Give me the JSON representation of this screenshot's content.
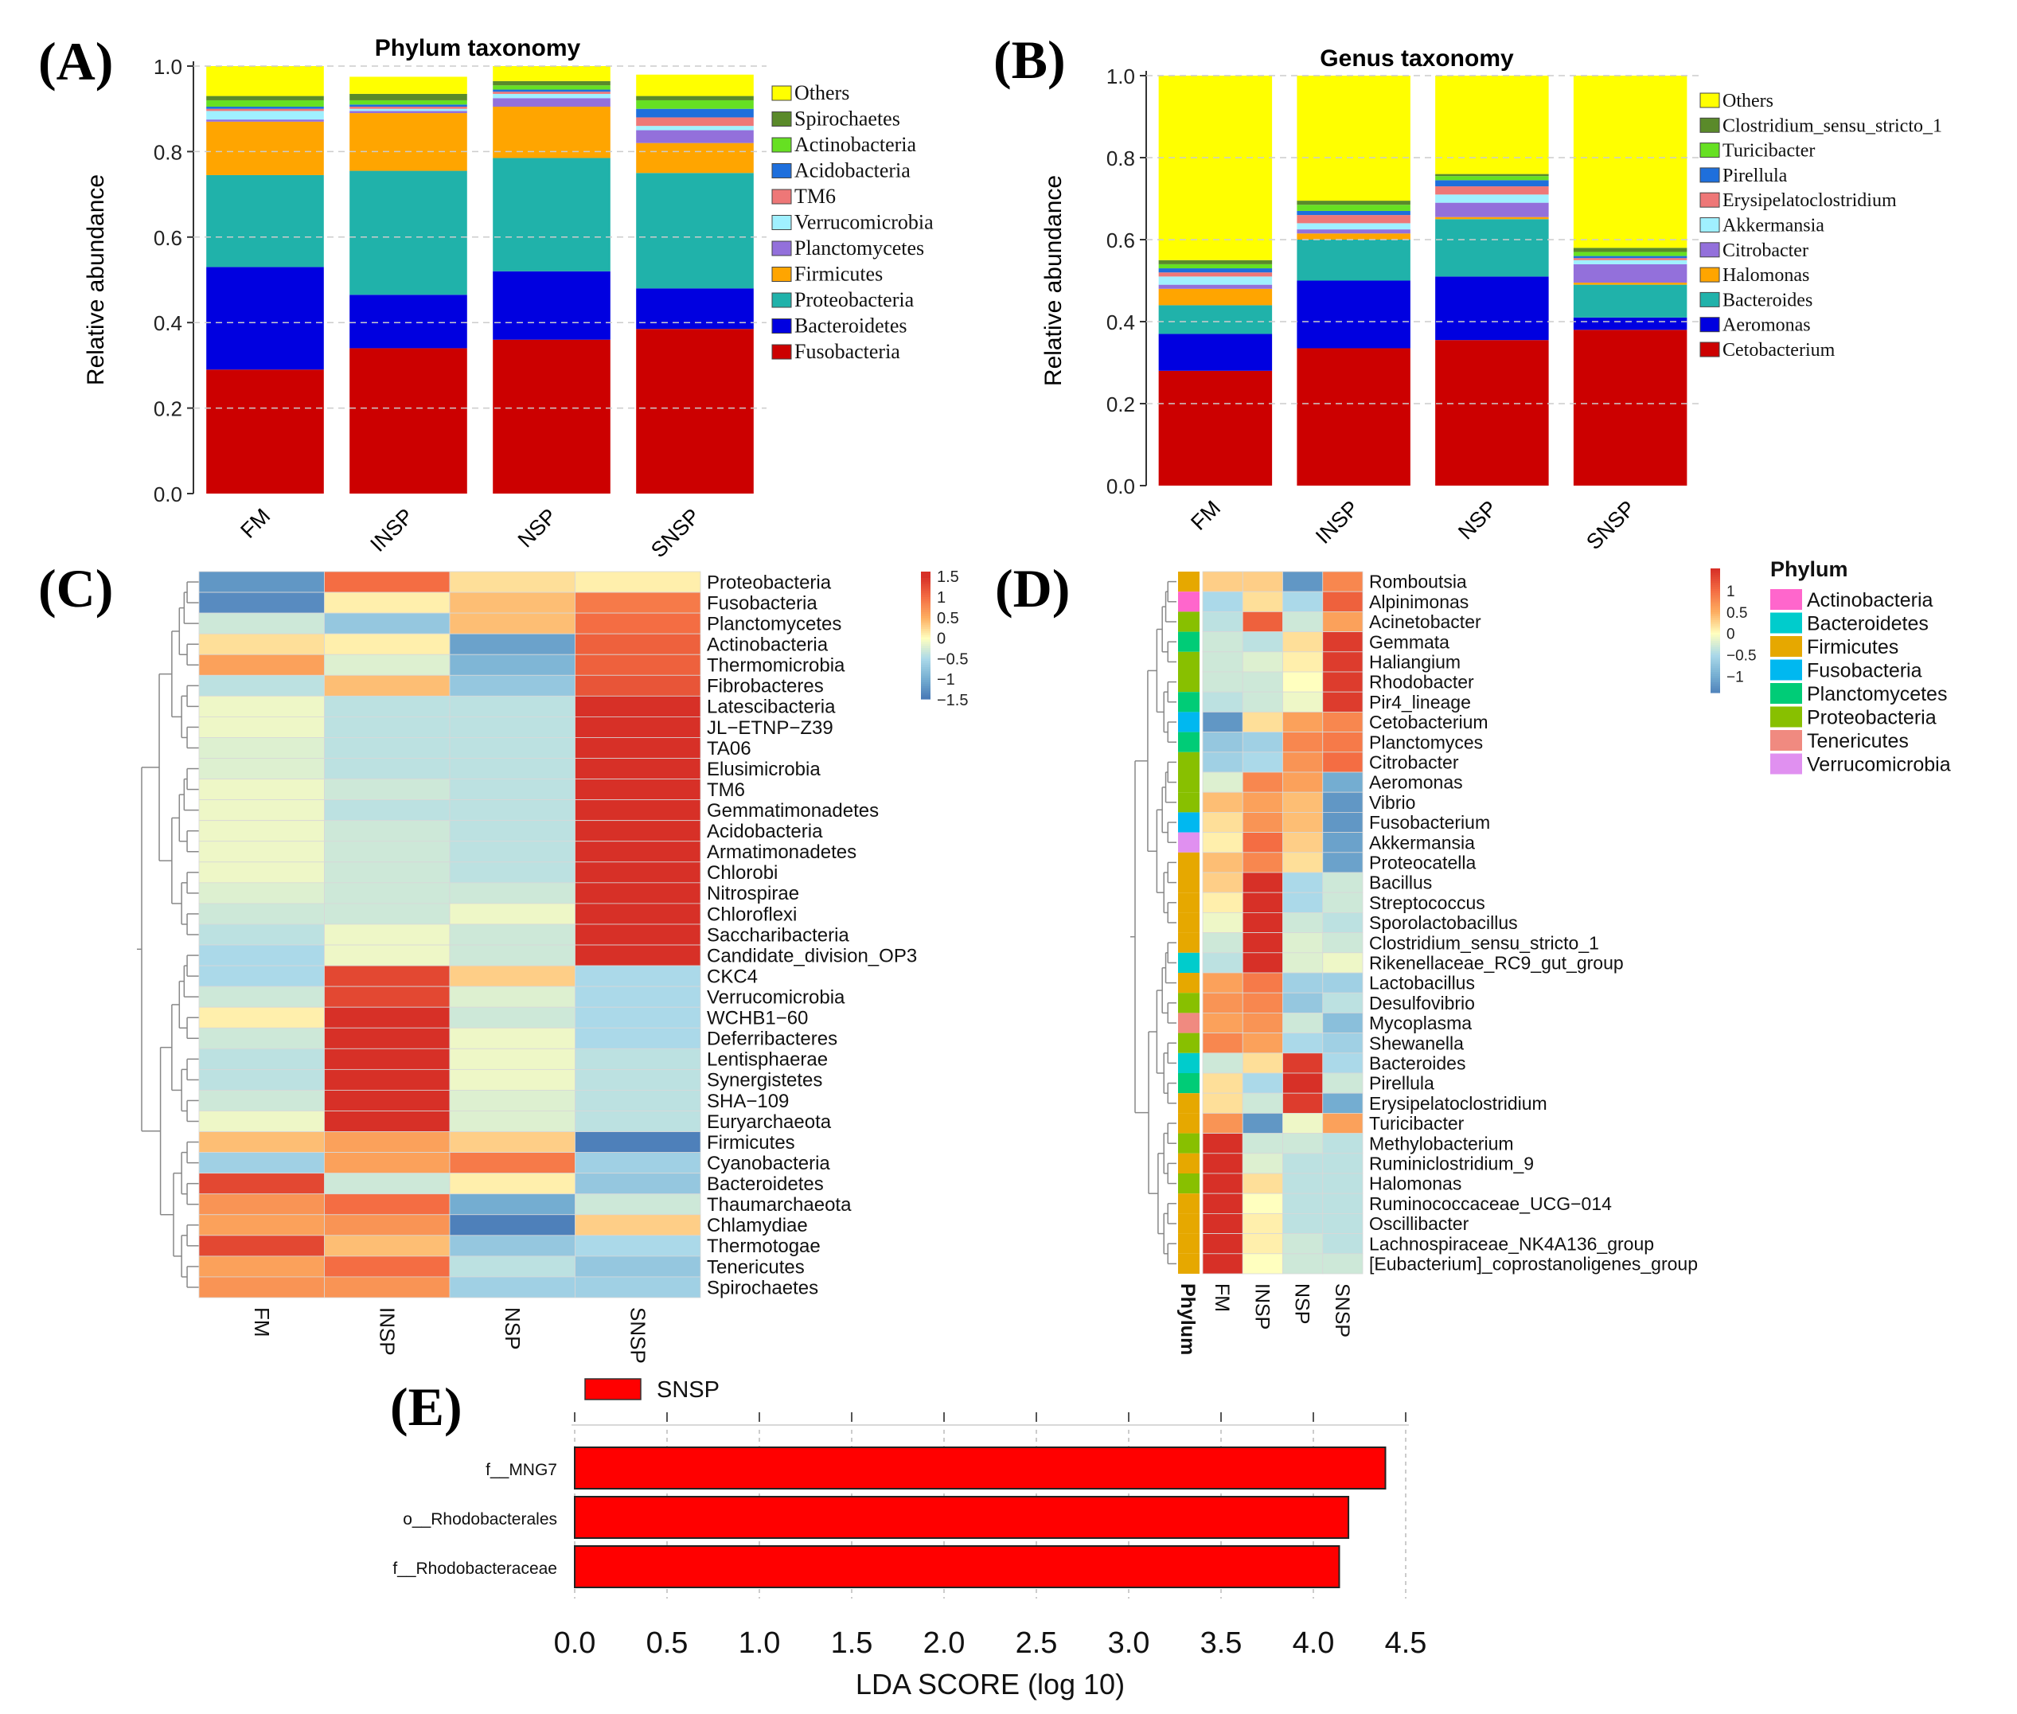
{
  "chart_data": [
    {
      "panel": "(A)",
      "type": "bar",
      "stacked": true,
      "title": "Phylum taxonomy",
      "ylabel": "Relative abundance",
      "xlabel": "",
      "ylim": [
        0,
        1
      ],
      "yticks": [
        "0.0",
        "0.2",
        "0.4",
        "0.6",
        "0.8",
        "1.0"
      ],
      "categories": [
        "FM",
        "INSP",
        "NSP",
        "SNSP"
      ],
      "series": [
        {
          "name": "Fusobacteria",
          "color": "#cc0000",
          "values": [
            0.29,
            0.34,
            0.36,
            0.385
          ]
        },
        {
          "name": "Bacteroidetes",
          "color": "#0000e0",
          "values": [
            0.24,
            0.125,
            0.16,
            0.095
          ]
        },
        {
          "name": "Proteobacteria",
          "color": "#20b2aa",
          "values": [
            0.215,
            0.29,
            0.265,
            0.27
          ]
        },
        {
          "name": "Firmicutes",
          "color": "#ffa500",
          "values": [
            0.125,
            0.135,
            0.12,
            0.07
          ]
        },
        {
          "name": "Planctomycetes",
          "color": "#9370db",
          "values": [
            0.005,
            0.005,
            0.02,
            0.03
          ]
        },
        {
          "name": "Verrucomicrobia",
          "color": "#a0f0ff",
          "values": [
            0.02,
            0.005,
            0.01,
            0.01
          ]
        },
        {
          "name": "TM6",
          "color": "#ee7777",
          "values": [
            0.005,
            0.005,
            0.005,
            0.02
          ]
        },
        {
          "name": "Acidobacteria",
          "color": "#1e6fdc",
          "values": [
            0.005,
            0.005,
            0.005,
            0.02
          ]
        },
        {
          "name": "Actinobacteria",
          "color": "#66e022",
          "values": [
            0.015,
            0.01,
            0.01,
            0.02
          ]
        },
        {
          "name": "Spirochaetes",
          "color": "#5a8a2a",
          "values": [
            0.01,
            0.015,
            0.01,
            0.01
          ]
        },
        {
          "name": "Others",
          "color": "#ffff00",
          "values": [
            0.07,
            0.04,
            0.035,
            0.05
          ]
        }
      ]
    },
    {
      "panel": "(B)",
      "type": "bar",
      "stacked": true,
      "title": "Genus taxonomy",
      "ylabel": "Relative abundance",
      "xlabel": "",
      "ylim": [
        0,
        1
      ],
      "yticks": [
        "0.0",
        "0.2",
        "0.4",
        "0.6",
        "0.8",
        "1.0"
      ],
      "categories": [
        "FM",
        "INSP",
        "NSP",
        "SNSP"
      ],
      "series": [
        {
          "name": "Cetobacterium",
          "color": "#cc0000",
          "values": [
            0.28,
            0.335,
            0.355,
            0.38
          ]
        },
        {
          "name": "Aeromonas",
          "color": "#0000e0",
          "values": [
            0.09,
            0.165,
            0.155,
            0.03
          ]
        },
        {
          "name": "Bacteroides",
          "color": "#20b2aa",
          "values": [
            0.07,
            0.1,
            0.14,
            0.08
          ]
        },
        {
          "name": "Halomonas",
          "color": "#ffa500",
          "values": [
            0.04,
            0.015,
            0.005,
            0.005
          ]
        },
        {
          "name": "Citrobacter",
          "color": "#9370db",
          "values": [
            0.01,
            0.01,
            0.035,
            0.045
          ]
        },
        {
          "name": "Akkermansia",
          "color": "#a0f0ff",
          "values": [
            0.02,
            0.015,
            0.02,
            0.01
          ]
        },
        {
          "name": "Erysipelatoclostridium",
          "color": "#ee7777",
          "values": [
            0.01,
            0.02,
            0.02,
            0.005
          ]
        },
        {
          "name": "Pirellula",
          "color": "#1e6fdc",
          "values": [
            0.01,
            0.01,
            0.015,
            0.005
          ]
        },
        {
          "name": "Turicibacter",
          "color": "#66e022",
          "values": [
            0.01,
            0.015,
            0.01,
            0.01
          ]
        },
        {
          "name": "Clostridium_sensu_stricto_1",
          "color": "#5a8a2a",
          "values": [
            0.01,
            0.01,
            0.005,
            0.01
          ]
        },
        {
          "name": "Others",
          "color": "#ffff00",
          "values": [
            0.45,
            0.305,
            0.24,
            0.42
          ]
        }
      ]
    },
    {
      "panel": "(C)",
      "type": "heatmap",
      "columns": [
        "FM",
        "INSP",
        "NSP",
        "SNSP"
      ],
      "colorbar_ticks": [
        "1.5",
        "1",
        "0.5",
        "0",
        "−0.5",
        "−1",
        "−1.5"
      ],
      "rows": [
        "Proteobacteria",
        "Fusobacteria",
        "Planctomycetes",
        "Actinobacteria",
        "Thermomicrobia",
        "Fibrobacteres",
        "Latescibacteria",
        "JL−ETNP−Z39",
        "TA06",
        "Elusimicrobia",
        "TM6",
        "Gemmatimonadetes",
        "Acidobacteria",
        "Armatimonadetes",
        "Chlorobi",
        "Nitrospirae",
        "Chloroflexi",
        "Saccharibacteria",
        "Candidate_division_OP3",
        "CKC4",
        "Verrucomicrobia",
        "WCHB1−60",
        "Deferribacteres",
        "Lentisphaerae",
        "Synergistetes",
        "SHA−109",
        "Euryarchaeota",
        "Firmicutes",
        "Cyanobacteria",
        "Bacteroidetes",
        "Thaumarchaeota",
        "Chlamydiae",
        "Thermotogae",
        "Tenericutes",
        "Spirochaetes"
      ],
      "values": [
        [
          -1.2,
          1.0,
          0.2,
          0.1
        ],
        [
          -1.3,
          0.1,
          0.4,
          0.9
        ],
        [
          -0.3,
          -0.7,
          0.4,
          1.0
        ],
        [
          0.2,
          0.1,
          -1.1,
          1.1
        ],
        [
          0.6,
          -0.2,
          -0.9,
          1.1
        ],
        [
          -0.4,
          0.4,
          -0.7,
          1.2
        ],
        [
          -0.1,
          -0.4,
          -0.4,
          1.5
        ],
        [
          -0.1,
          -0.4,
          -0.4,
          1.5
        ],
        [
          -0.2,
          -0.4,
          -0.4,
          1.5
        ],
        [
          -0.2,
          -0.4,
          -0.4,
          1.5
        ],
        [
          -0.1,
          -0.3,
          -0.4,
          1.5
        ],
        [
          -0.1,
          -0.4,
          -0.4,
          1.5
        ],
        [
          -0.1,
          -0.3,
          -0.4,
          1.5
        ],
        [
          -0.1,
          -0.3,
          -0.4,
          1.5
        ],
        [
          -0.1,
          -0.3,
          -0.4,
          1.5
        ],
        [
          -0.2,
          -0.3,
          -0.3,
          1.5
        ],
        [
          -0.3,
          -0.3,
          -0.1,
          1.5
        ],
        [
          -0.4,
          -0.1,
          -0.3,
          1.5
        ],
        [
          -0.5,
          -0.1,
          -0.3,
          1.5
        ],
        [
          -0.5,
          1.3,
          0.3,
          -0.5
        ],
        [
          -0.3,
          1.3,
          -0.2,
          -0.5
        ],
        [
          0.1,
          1.5,
          -0.3,
          -0.5
        ],
        [
          -0.3,
          1.5,
          -0.1,
          -0.5
        ],
        [
          -0.4,
          1.5,
          -0.1,
          -0.4
        ],
        [
          -0.4,
          1.5,
          -0.1,
          -0.4
        ],
        [
          -0.3,
          1.5,
          -0.2,
          -0.4
        ],
        [
          -0.1,
          1.5,
          -0.2,
          -0.4
        ],
        [
          0.4,
          0.6,
          0.3,
          -1.4
        ],
        [
          -0.6,
          0.6,
          0.9,
          -0.6
        ],
        [
          1.3,
          -0.3,
          0.1,
          -0.7
        ],
        [
          0.7,
          1.0,
          -1.0,
          -0.3
        ],
        [
          0.6,
          0.7,
          -1.4,
          0.3
        ],
        [
          1.3,
          0.4,
          -0.7,
          -0.5
        ],
        [
          0.6,
          1.0,
          -0.4,
          -0.7
        ],
        [
          0.7,
          0.7,
          -0.6,
          -0.6
        ]
      ]
    },
    {
      "panel": "(D)",
      "type": "heatmap",
      "columns": [
        "FM",
        "INSP",
        "NSP",
        "SNSP"
      ],
      "annotation_column_label": "Phylum",
      "colorbar_ticks": [
        "1",
        "0.5",
        "0",
        "−0.5",
        "−1"
      ],
      "legend_title": "Phylum",
      "phylum_legend": [
        {
          "name": "Actinobacteria",
          "color": "#ff66cc"
        },
        {
          "name": "Bacteroidetes",
          "color": "#00cccc"
        },
        {
          "name": "Firmicutes",
          "color": "#e6a800"
        },
        {
          "name": "Fusobacteria",
          "color": "#00b8f0"
        },
        {
          "name": "Planctomycetes",
          "color": "#00cc77"
        },
        {
          "name": "Proteobacteria",
          "color": "#88c000"
        },
        {
          "name": "Tenericutes",
          "color": "#f08a80"
        },
        {
          "name": "Verrucomicrobia",
          "color": "#e090f0"
        }
      ],
      "rows": [
        "Romboutsia",
        "Alpinimonas",
        "Acinetobacter",
        "Gemmata",
        "Haliangium",
        "Rhodobacter",
        "Pir4_lineage",
        "Cetobacterium",
        "Planctomyces",
        "Citrobacter",
        "Aeromonas",
        "Vibrio",
        "Fusobacterium",
        "Akkermansia",
        "Proteocatella",
        "Bacillus",
        "Streptococcus",
        "Sporolactobacillus",
        "Clostridium_sensu_stricto_1",
        "Rikenellaceae_RC9_gut_group",
        "Lactobacillus",
        "Desulfovibrio",
        "Mycoplasma",
        "Shewanella",
        "Bacteroides",
        "Pirellula",
        "Erysipelatoclostridium",
        "Turicibacter",
        "Methylobacterium",
        "Ruminiclostridium_9",
        "Halomonas",
        "Ruminococcaceae_UCG−014",
        "Oscillibacter",
        "Lachnospiraceae_NK4A136_group",
        "[Eubacterium]_coprostanoligenes_group"
      ],
      "row_phylum": [
        "Firmicutes",
        "Actinobacteria",
        "Proteobacteria",
        "Planctomycetes",
        "Proteobacteria",
        "Proteobacteria",
        "Planctomycetes",
        "Fusobacteria",
        "Planctomycetes",
        "Proteobacteria",
        "Proteobacteria",
        "Proteobacteria",
        "Fusobacteria",
        "Verrucomicrobia",
        "Firmicutes",
        "Firmicutes",
        "Firmicutes",
        "Firmicutes",
        "Firmicutes",
        "Bacteroidetes",
        "Firmicutes",
        "Proteobacteria",
        "Tenericutes",
        "Proteobacteria",
        "Bacteroidetes",
        "Planctomycetes",
        "Firmicutes",
        "Firmicutes",
        "Proteobacteria",
        "Firmicutes",
        "Proteobacteria",
        "Firmicutes",
        "Firmicutes",
        "Firmicutes",
        "Firmicutes"
      ],
      "values": [
        [
          0.3,
          0.3,
          -1.2,
          0.8
        ],
        [
          -0.5,
          0.2,
          -0.5,
          1.1
        ],
        [
          -0.4,
          1.1,
          -0.3,
          0.6
        ],
        [
          -0.3,
          -0.4,
          0.2,
          1.4
        ],
        [
          -0.3,
          -0.2,
          0.1,
          1.4
        ],
        [
          -0.3,
          -0.3,
          0.0,
          1.4
        ],
        [
          -0.4,
          -0.3,
          -0.1,
          1.4
        ],
        [
          -1.2,
          0.2,
          0.6,
          0.8
        ],
        [
          -0.7,
          -0.6,
          0.8,
          0.9
        ],
        [
          -0.6,
          -0.5,
          0.7,
          1.0
        ],
        [
          -0.2,
          0.8,
          0.6,
          -1.0
        ],
        [
          0.4,
          0.6,
          0.4,
          -1.2
        ],
        [
          0.2,
          0.7,
          0.4,
          -1.2
        ],
        [
          0.1,
          1.0,
          0.3,
          -1.1
        ],
        [
          0.4,
          0.8,
          0.2,
          -1.1
        ],
        [
          0.3,
          1.5,
          -0.5,
          -0.3
        ],
        [
          0.1,
          1.5,
          -0.5,
          -0.3
        ],
        [
          -0.1,
          1.5,
          -0.3,
          -0.4
        ],
        [
          -0.3,
          1.5,
          -0.2,
          -0.3
        ],
        [
          -0.4,
          1.5,
          -0.2,
          -0.1
        ],
        [
          0.6,
          0.9,
          -0.6,
          -0.6
        ],
        [
          0.7,
          0.8,
          -0.7,
          -0.4
        ],
        [
          0.6,
          0.7,
          -0.3,
          -0.8
        ],
        [
          0.8,
          0.6,
          -0.5,
          -0.6
        ],
        [
          -0.3,
          0.2,
          1.4,
          -0.5
        ],
        [
          0.2,
          -0.5,
          1.5,
          -0.3
        ],
        [
          0.2,
          -0.3,
          1.4,
          -1.0
        ],
        [
          0.7,
          -1.2,
          -0.1,
          0.6
        ],
        [
          1.5,
          -0.3,
          -0.3,
          -0.4
        ],
        [
          1.5,
          -0.2,
          -0.4,
          -0.4
        ],
        [
          1.5,
          0.2,
          -0.4,
          -0.4
        ],
        [
          1.5,
          0.0,
          -0.4,
          -0.4
        ],
        [
          1.5,
          0.1,
          -0.4,
          -0.4
        ],
        [
          1.5,
          0.1,
          -0.3,
          -0.4
        ],
        [
          1.5,
          0.0,
          -0.3,
          -0.3
        ]
      ]
    },
    {
      "panel": "(E)",
      "type": "bar",
      "orientation": "horizontal",
      "title": "",
      "xlabel": "LDA SCORE (log 10)",
      "ylabel": "",
      "xlim": [
        0,
        4.5
      ],
      "xticks": [
        "0.0",
        "0.5",
        "1.0",
        "1.5",
        "2.0",
        "2.5",
        "3.0",
        "3.5",
        "4.0",
        "4.5"
      ],
      "legend": [
        {
          "name": "SNSP",
          "color": "#ff0000"
        }
      ],
      "categories": [
        "f__MNG7",
        "o__Rhodobacterales",
        "f__Rhodobacteraceae"
      ],
      "values": [
        4.39,
        4.19,
        4.14
      ]
    }
  ]
}
